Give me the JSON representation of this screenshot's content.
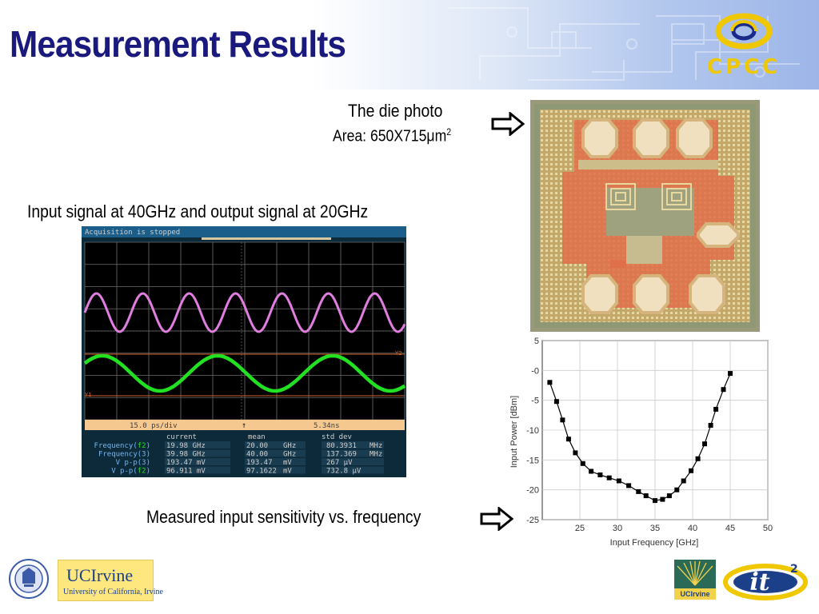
{
  "slide": {
    "title": "Measurement Results",
    "logo_text": "CPCC"
  },
  "die_photo": {
    "caption_line1": "The die photo",
    "caption_area_prefix": "Area: 650X715",
    "caption_area_unit": "μm",
    "caption_area_sup": "2"
  },
  "scope_caption": "Input signal at 40GHz and output signal at 20GHz",
  "sensitivity_caption": "Measured input sensitivity vs. frequency",
  "oscilloscope": {
    "status": "Acquisition is stopped",
    "time_div": "15.0 ps/div",
    "time_pos": "5.34ns",
    "marker_y2": "Y2",
    "marker_y1": "Y1",
    "headers": [
      "current",
      "mean",
      "std dev"
    ],
    "rows": [
      {
        "label": "Frequency(",
        "ch": "f2",
        "close": ")",
        "current": "19.98 GHz",
        "mean": "20.00",
        "mean_unit": "GHz",
        "std": "80.3931",
        "std_unit": "MHz"
      },
      {
        "label": "Frequency(3)",
        "ch": "",
        "close": "",
        "current": "39.98 GHz",
        "mean": "40.00",
        "mean_unit": "GHz",
        "std": "137.369",
        "std_unit": "MHz"
      },
      {
        "label": "V p-p(3)",
        "ch": "",
        "close": "",
        "current": "193.47 mV",
        "mean": "193.47",
        "mean_unit": "mV",
        "std": "267 μV",
        "std_unit": ""
      },
      {
        "label": "V p-p(",
        "ch": "f2",
        "close": ")",
        "current": "96.911 mV",
        "mean": "97.1622",
        "mean_unit": "mV",
        "std": "732.8 μV",
        "std_unit": ""
      }
    ],
    "colors": {
      "input": "#e07ee0",
      "output": "#22e022",
      "grid": "#6c6c6c",
      "bar": "#f5c890"
    }
  },
  "chart_data": {
    "type": "line",
    "title": "",
    "xlabel": "Input Frequency [GHz]",
    "ylabel": "Input Power [dBm]",
    "xlim": [
      20,
      50
    ],
    "ylim": [
      -25,
      5
    ],
    "xticks": [
      25,
      30,
      35,
      40,
      45,
      50
    ],
    "yticks": [
      5,
      0,
      -5,
      -10,
      -15,
      -20,
      -25
    ],
    "ytick_labels": [
      "5",
      "-0",
      "-5",
      "-10",
      "-15",
      "-20",
      "-25"
    ],
    "grid": true,
    "series": [
      {
        "x": [
          21.0,
          21.9,
          22.7,
          23.5,
          24.4,
          25.4,
          26.5,
          27.7,
          28.9,
          30.2,
          31.5,
          32.8,
          33.8,
          35.0,
          36.0,
          36.9,
          37.9,
          38.8,
          39.8,
          40.7,
          41.6,
          42.4,
          43.1,
          44.1,
          45.0
        ],
        "y": [
          -2.0,
          -5.2,
          -8.3,
          -11.5,
          -13.8,
          -15.6,
          -16.9,
          -17.5,
          -18.0,
          -18.5,
          -19.3,
          -20.3,
          -21.0,
          -21.8,
          -21.6,
          -21.0,
          -20.0,
          -18.5,
          -16.8,
          -14.8,
          -12.3,
          -9.2,
          -6.5,
          -3.2,
          -0.5
        ]
      }
    ]
  },
  "footer": {
    "uci_title": "UCIrvine",
    "uci_sub": "University of California, Irvine",
    "uci_small": "UCIrvine",
    "it2": "it",
    "it2_sup": "2"
  }
}
